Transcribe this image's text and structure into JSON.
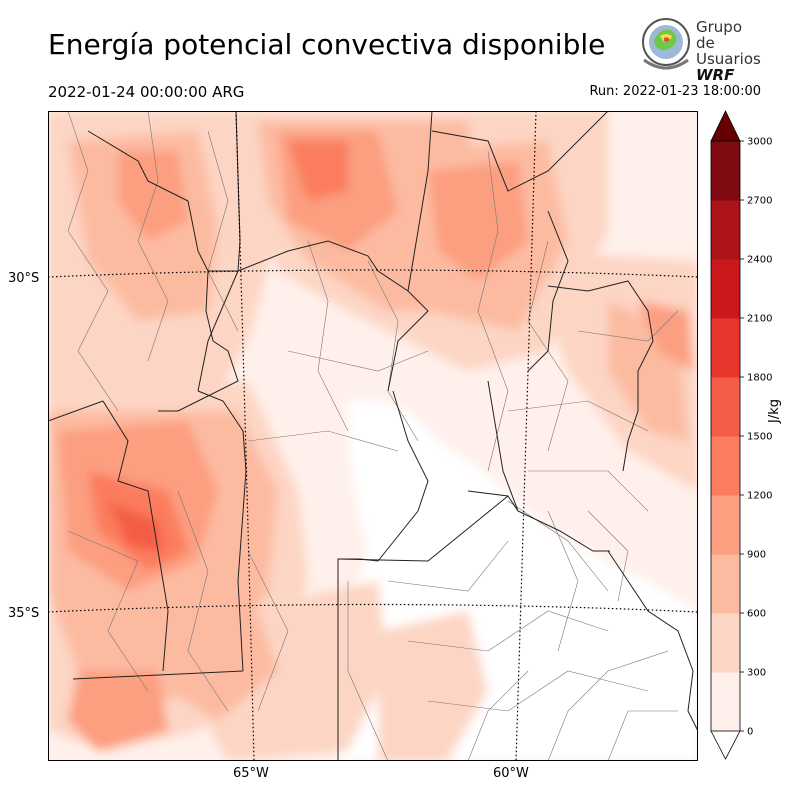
{
  "header": {
    "title": "Energía potencial convectiva disponible",
    "valid_time": "2022-01-24 00:00:00 ARG",
    "run_time": "Run: 2022-01-23 18:00:00"
  },
  "logo": {
    "line1": "Grupo de",
    "line2": "Usuarios",
    "line3": "WRF"
  },
  "map": {
    "lat_labels": [
      "30°S",
      "35°S"
    ],
    "lon_labels": [
      "65°W",
      "60°W"
    ]
  },
  "colorbar": {
    "label": "J/kg",
    "ticks": [
      "0",
      "300",
      "600",
      "900",
      "1200",
      "1500",
      "1800",
      "2100",
      "2400",
      "2700",
      "3000"
    ],
    "colors": [
      "#fff0eb",
      "#fdd5c4",
      "#fcbba1",
      "#fc9e80",
      "#fb7d5d",
      "#f45d45",
      "#e9362c",
      "#cb181d",
      "#ac1419",
      "#7f0a12"
    ],
    "extend_colors": {
      "under": "#ffffff",
      "over": "#670000"
    }
  }
}
